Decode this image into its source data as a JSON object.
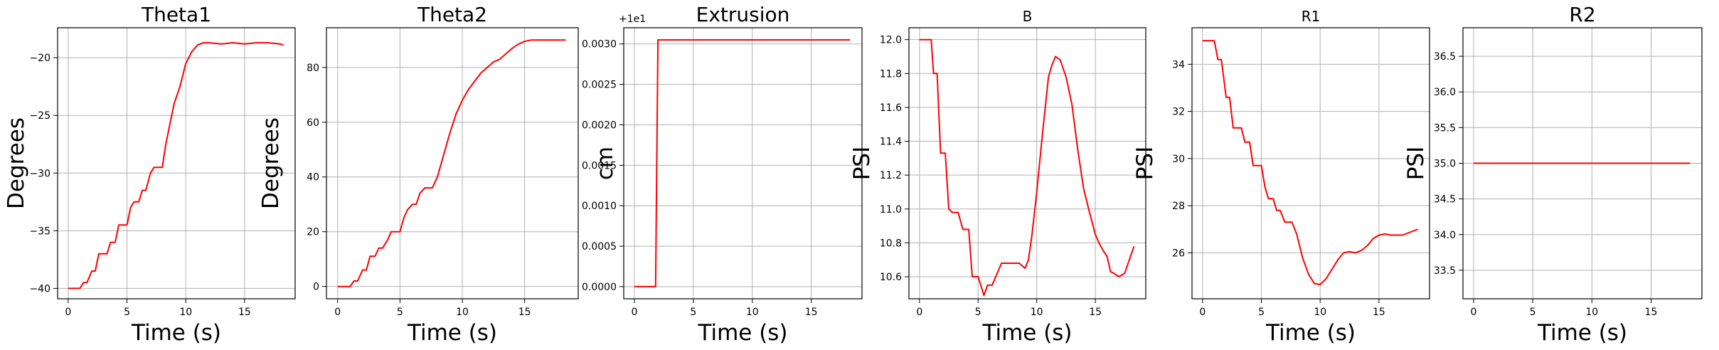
{
  "figure": {
    "layout": "1x6 subplots"
  },
  "chart_data": [
    {
      "type": "line",
      "title": "Theta1",
      "xlabel": "Time (s)",
      "ylabel": "Degrees",
      "xlim": [
        -0.9,
        19.3
      ],
      "ylim": [
        -40.9,
        -17.4
      ],
      "xticks": [
        0,
        5,
        10,
        15
      ],
      "xtick_labels": [
        "0",
        "5",
        "10",
        "15"
      ],
      "yticks": [
        -40,
        -35,
        -30,
        -25,
        -20
      ],
      "ytick_labels": [
        "−40",
        "−35",
        "−30",
        "−25",
        "−20"
      ],
      "grid": true,
      "line_color": "#ff0000",
      "series": [
        {
          "x": [
            0,
            1,
            1.3,
            1.6,
            2,
            2.3,
            2.6,
            3,
            3.3,
            3.6,
            4,
            4.3,
            4.6,
            5,
            5.3,
            5.6,
            6,
            6.3,
            6.6,
            7,
            7.3,
            7.6,
            8,
            8.3,
            8.6,
            9,
            9.5,
            10,
            10.5,
            11,
            11.5,
            12,
            13,
            14,
            15,
            16,
            17,
            18,
            18.3
          ],
          "y": [
            -40,
            -40,
            -39.5,
            -39.5,
            -38.5,
            -38.5,
            -37,
            -37,
            -37,
            -36,
            -36,
            -34.5,
            -34.5,
            -34.5,
            -33,
            -32.5,
            -32.5,
            -31.5,
            -31.5,
            -30,
            -29.5,
            -29.5,
            -29.5,
            -27.5,
            -26,
            -24,
            -22.5,
            -20.5,
            -19.5,
            -18.9,
            -18.7,
            -18.7,
            -18.8,
            -18.7,
            -18.8,
            -18.7,
            -18.7,
            -18.8,
            -18.9
          ]
        }
      ]
    },
    {
      "type": "line",
      "title": "Theta2",
      "xlabel": "Time (s)",
      "ylabel": "Degrees",
      "xlim": [
        -0.9,
        19.3
      ],
      "ylim": [
        -4.5,
        94.5
      ],
      "xticks": [
        0,
        5,
        10,
        15
      ],
      "xtick_labels": [
        "0",
        "5",
        "10",
        "15"
      ],
      "yticks": [
        0,
        20,
        40,
        60,
        80
      ],
      "ytick_labels": [
        "0",
        "20",
        "40",
        "60",
        "80"
      ],
      "grid": true,
      "line_color": "#ff0000",
      "series": [
        {
          "x": [
            0,
            1,
            1.3,
            1.6,
            2,
            2.3,
            2.6,
            3,
            3.3,
            3.6,
            4,
            4.3,
            4.6,
            5,
            5.3,
            5.6,
            6,
            6.3,
            6.6,
            7,
            7.3,
            7.6,
            8,
            8.5,
            9,
            9.5,
            10,
            10.5,
            11,
            11.5,
            12,
            12.5,
            13,
            13.5,
            14,
            14.5,
            15,
            15.5,
            16,
            17,
            18.3
          ],
          "y": [
            0,
            0,
            2,
            2,
            6,
            6,
            11,
            11,
            14,
            14,
            17,
            20,
            20,
            20,
            25,
            28,
            30,
            30,
            34,
            36,
            36,
            36,
            40,
            48,
            56,
            63,
            68,
            72,
            75,
            78,
            80,
            82,
            83,
            85,
            87,
            88.5,
            89.5,
            90,
            90,
            90,
            90
          ]
        }
      ]
    },
    {
      "type": "line",
      "title": "Extrusion",
      "xlabel": "Time (s)",
      "ylabel": "cm",
      "offset_text": "+1e1",
      "xlim": [
        -0.9,
        19.3
      ],
      "ylim": [
        -0.00015,
        0.0032
      ],
      "xticks": [
        0,
        5,
        10,
        15
      ],
      "xtick_labels": [
        "0",
        "5",
        "10",
        "15"
      ],
      "yticks": [
        0,
        0.0005,
        0.001,
        0.0015,
        0.002,
        0.0025,
        0.003
      ],
      "ytick_labels": [
        "0.0000",
        "0.0005",
        "0.0010",
        "0.0015",
        "0.0020",
        "0.0025",
        "0.0030"
      ],
      "grid": true,
      "line_color": "#ff0000",
      "series": [
        {
          "x": [
            0,
            1.8,
            2,
            18.3
          ],
          "y": [
            0,
            0,
            0.00305,
            0.00305
          ]
        }
      ]
    },
    {
      "type": "line",
      "title": "B",
      "xlabel": "Time (s)",
      "ylabel": "PSI",
      "xlim": [
        -0.9,
        19.3
      ],
      "ylim": [
        10.47,
        12.07
      ],
      "xticks": [
        0,
        5,
        10,
        15
      ],
      "xtick_labels": [
        "0",
        "5",
        "10",
        "15"
      ],
      "yticks": [
        10.6,
        10.8,
        11.0,
        11.2,
        11.4,
        11.6,
        11.8,
        12.0
      ],
      "ytick_labels": [
        "10.6",
        "10.8",
        "11.0",
        "11.2",
        "11.4",
        "11.6",
        "11.8",
        "12.0"
      ],
      "grid": true,
      "line_color": "#ff0000",
      "series": [
        {
          "x": [
            0,
            1,
            1.2,
            1.5,
            1.8,
            2.2,
            2.5,
            2.8,
            3.3,
            3.7,
            4.2,
            4.5,
            5,
            5.5,
            5.8,
            6.2,
            6.5,
            7,
            7.5,
            8,
            8.5,
            9,
            9.3,
            9.6,
            10,
            10.5,
            11,
            11.3,
            11.6,
            12,
            12.5,
            13,
            13.5,
            14,
            14.5,
            15,
            15.3,
            15.7,
            16,
            16.3,
            16.6,
            17,
            17.5,
            18.3
          ],
          "y": [
            12.0,
            12.0,
            11.8,
            11.8,
            11.33,
            11.33,
            11.0,
            10.98,
            10.98,
            10.88,
            10.88,
            10.6,
            10.6,
            10.49,
            10.55,
            10.55,
            10.6,
            10.68,
            10.68,
            10.68,
            10.68,
            10.65,
            10.7,
            10.85,
            11.1,
            11.45,
            11.78,
            11.85,
            11.9,
            11.88,
            11.78,
            11.62,
            11.35,
            11.12,
            10.98,
            10.85,
            10.8,
            10.75,
            10.72,
            10.63,
            10.62,
            10.6,
            10.62,
            10.78
          ]
        }
      ]
    },
    {
      "type": "line",
      "title": "R1",
      "xlabel": "Time (s)",
      "ylabel": "PSI",
      "xlim": [
        -0.9,
        19.3
      ],
      "ylim": [
        24.05,
        35.55
      ],
      "xticks": [
        0,
        5,
        10,
        15
      ],
      "xtick_labels": [
        "0",
        "5",
        "10",
        "15"
      ],
      "yticks": [
        26,
        28,
        30,
        32,
        34
      ],
      "ytick_labels": [
        "26",
        "28",
        "30",
        "32",
        "34"
      ],
      "grid": true,
      "line_color": "#ff0000",
      "series": [
        {
          "x": [
            0,
            1,
            1.3,
            1.6,
            2,
            2.3,
            2.6,
            3,
            3.3,
            3.6,
            4,
            4.3,
            4.6,
            5,
            5.3,
            5.6,
            6,
            6.3,
            6.6,
            7,
            7.3,
            7.6,
            8,
            8.5,
            9,
            9.5,
            10,
            10.5,
            11,
            11.5,
            12,
            12.5,
            13,
            13.5,
            14,
            14.5,
            15,
            15.5,
            16,
            17,
            18.3
          ],
          "y": [
            35,
            35,
            34.2,
            34.2,
            32.6,
            32.6,
            31.3,
            31.3,
            31.3,
            30.7,
            30.7,
            29.7,
            29.7,
            29.7,
            28.8,
            28.3,
            28.3,
            27.8,
            27.8,
            27.3,
            27.3,
            27.3,
            26.8,
            25.8,
            25.1,
            24.7,
            24.65,
            24.9,
            25.3,
            25.7,
            26.0,
            26.05,
            26.0,
            26.1,
            26.3,
            26.6,
            26.75,
            26.8,
            26.75,
            26.75,
            27.0
          ]
        }
      ]
    },
    {
      "type": "line",
      "title": "R2",
      "xlabel": "Time (s)",
      "ylabel": "PSI",
      "xlim": [
        -0.9,
        19.3
      ],
      "ylim": [
        33.1,
        36.9
      ],
      "xticks": [
        0,
        5,
        10,
        15
      ],
      "xtick_labels": [
        "0",
        "5",
        "10",
        "15"
      ],
      "yticks": [
        33.5,
        34.0,
        34.5,
        35.0,
        35.5,
        36.0,
        36.5
      ],
      "ytick_labels": [
        "33.5",
        "34.0",
        "34.5",
        "35.0",
        "35.5",
        "36.0",
        "36.5"
      ],
      "grid": true,
      "line_color": "#ff0000",
      "series": [
        {
          "x": [
            0,
            18.3
          ],
          "y": [
            35.0,
            35.0
          ]
        }
      ]
    }
  ]
}
